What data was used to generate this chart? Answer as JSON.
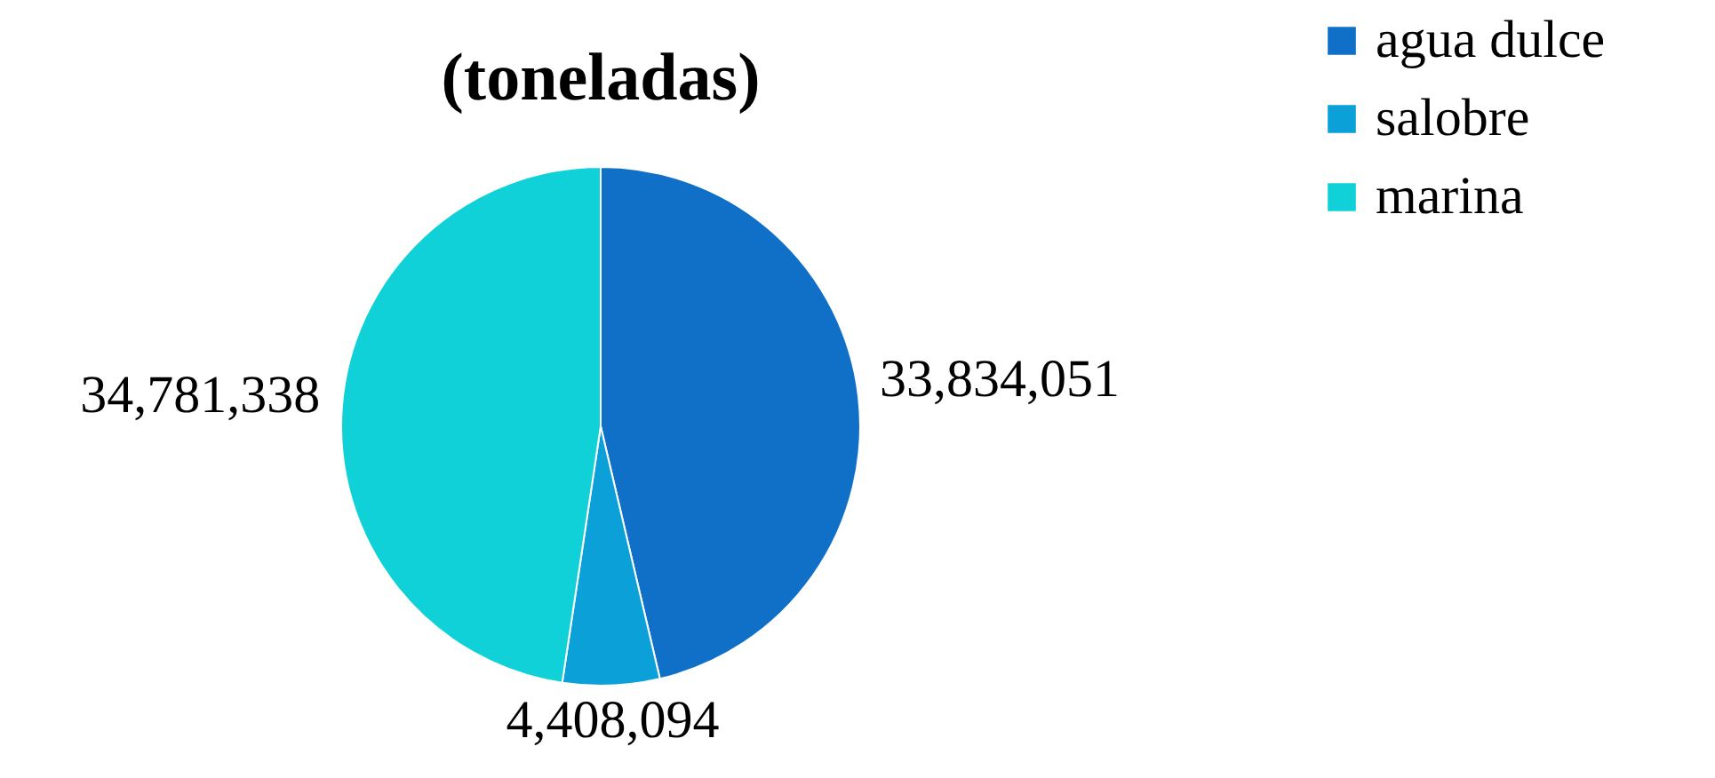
{
  "chart_data": {
    "type": "pie",
    "title": "(toneladas)",
    "categories": [
      "agua dulce",
      "salobre",
      "marina"
    ],
    "values": [
      33834051,
      4408094,
      34781338
    ],
    "colors": [
      "#1070c8",
      "#0ba0d8",
      "#10d0d8"
    ],
    "value_labels": [
      "33,834,051",
      "4,408,094",
      "34,781,338"
    ],
    "legend": "top right"
  }
}
